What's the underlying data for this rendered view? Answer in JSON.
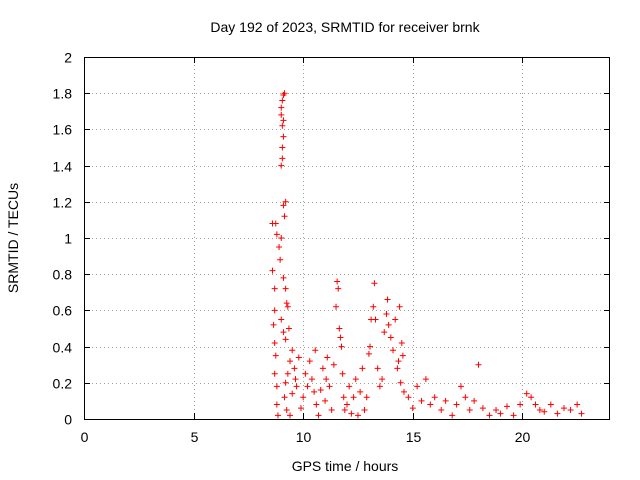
{
  "chart_data": {
    "type": "scatter",
    "title": "Day 192 of 2023, SRMTID for receiver brnk",
    "xlabel": "GPS time / hours",
    "ylabel": "SRMTID / TECUs",
    "xlim": [
      0,
      24
    ],
    "ylim": [
      0,
      2
    ],
    "xticks": [
      0,
      5,
      10,
      15,
      20
    ],
    "xtick_labels": [
      "0",
      "5",
      "10",
      "15",
      "20"
    ],
    "yticks": [
      0,
      0.2,
      0.4,
      0.6,
      0.8,
      1,
      1.2,
      1.4,
      1.6,
      1.8,
      2
    ],
    "ytick_labels": [
      "0",
      "0.2",
      "0.4",
      "0.6",
      "0.8",
      "1",
      "1.2",
      "1.4",
      "1.6",
      "1.8",
      "2"
    ],
    "grid": true,
    "marker": "plus",
    "color": "#ff0000",
    "series": [
      {
        "name": "SRMTID",
        "points": [
          [
            8.6,
            1.08
          ],
          [
            8.75,
            1.08
          ],
          [
            8.8,
            1.02
          ],
          [
            8.6,
            0.82
          ],
          [
            8.7,
            0.72
          ],
          [
            8.7,
            0.6
          ],
          [
            8.65,
            0.52
          ],
          [
            8.7,
            0.42
          ],
          [
            8.75,
            0.35
          ],
          [
            8.7,
            0.25
          ],
          [
            8.8,
            0.18
          ],
          [
            8.8,
            0.08
          ],
          [
            8.85,
            0.02
          ],
          [
            8.9,
            0.95
          ],
          [
            8.95,
            0.88
          ],
          [
            9.0,
            1.0
          ],
          [
            9.05,
            1.44
          ],
          [
            9.0,
            1.4
          ],
          [
            9.05,
            1.5
          ],
          [
            9.1,
            1.56
          ],
          [
            9.05,
            1.62
          ],
          [
            9.1,
            1.65
          ],
          [
            9.0,
            1.72
          ],
          [
            9.05,
            1.76
          ],
          [
            9.1,
            1.79
          ],
          [
            9.15,
            1.8
          ],
          [
            9.0,
            1.68
          ],
          [
            9.1,
            1.18
          ],
          [
            9.15,
            1.12
          ],
          [
            9.2,
            1.2
          ],
          [
            9.1,
            0.78
          ],
          [
            9.2,
            0.72
          ],
          [
            9.25,
            0.64
          ],
          [
            9.3,
            0.62
          ],
          [
            9.0,
            0.55
          ],
          [
            9.1,
            0.48
          ],
          [
            9.2,
            0.44
          ],
          [
            9.35,
            0.5
          ],
          [
            9.4,
            0.32
          ],
          [
            9.3,
            0.25
          ],
          [
            9.2,
            0.2
          ],
          [
            9.15,
            0.12
          ],
          [
            9.25,
            0.05
          ],
          [
            9.4,
            0.02
          ],
          [
            9.5,
            0.14
          ],
          [
            9.5,
            0.38
          ],
          [
            9.6,
            0.28
          ],
          [
            9.65,
            0.22
          ],
          [
            9.7,
            0.18
          ],
          [
            9.8,
            0.34
          ],
          [
            9.9,
            0.06
          ],
          [
            10.0,
            0.12
          ],
          [
            10.1,
            0.25
          ],
          [
            10.2,
            0.18
          ],
          [
            10.3,
            0.32
          ],
          [
            10.4,
            0.22
          ],
          [
            10.5,
            0.15
          ],
          [
            10.55,
            0.38
          ],
          [
            10.6,
            0.08
          ],
          [
            10.7,
            0.02
          ],
          [
            10.8,
            0.16
          ],
          [
            10.9,
            0.28
          ],
          [
            11.0,
            0.1
          ],
          [
            11.05,
            0.22
          ],
          [
            11.1,
            0.34
          ],
          [
            11.2,
            0.18
          ],
          [
            11.3,
            0.05
          ],
          [
            11.4,
            0.3
          ],
          [
            11.5,
            0.62
          ],
          [
            11.55,
            0.76
          ],
          [
            11.6,
            0.72
          ],
          [
            11.65,
            0.5
          ],
          [
            11.7,
            0.45
          ],
          [
            11.75,
            0.4
          ],
          [
            11.8,
            0.25
          ],
          [
            11.85,
            0.12
          ],
          [
            11.9,
            0.05
          ],
          [
            12.0,
            0.08
          ],
          [
            12.1,
            0.18
          ],
          [
            12.2,
            0.03
          ],
          [
            12.3,
            0.12
          ],
          [
            12.4,
            0.22
          ],
          [
            12.5,
            0.02
          ],
          [
            12.6,
            0.15
          ],
          [
            12.7,
            0.28
          ],
          [
            12.8,
            0.05
          ],
          [
            12.9,
            0.12
          ],
          [
            13.0,
            0.36
          ],
          [
            13.05,
            0.4
          ],
          [
            13.1,
            0.55
          ],
          [
            13.2,
            0.62
          ],
          [
            13.25,
            0.75
          ],
          [
            13.3,
            0.55
          ],
          [
            13.4,
            0.28
          ],
          [
            13.5,
            0.18
          ],
          [
            13.6,
            0.22
          ],
          [
            13.7,
            0.48
          ],
          [
            13.8,
            0.58
          ],
          [
            13.85,
            0.66
          ],
          [
            13.9,
            0.52
          ],
          [
            14.0,
            0.45
          ],
          [
            14.1,
            0.38
          ],
          [
            14.2,
            0.55
          ],
          [
            14.3,
            0.28
          ],
          [
            14.35,
            0.32
          ],
          [
            14.4,
            0.62
          ],
          [
            14.45,
            0.2
          ],
          [
            14.5,
            0.42
          ],
          [
            14.55,
            0.35
          ],
          [
            14.6,
            0.15
          ],
          [
            14.8,
            0.12
          ],
          [
            15.0,
            0.06
          ],
          [
            15.2,
            0.18
          ],
          [
            15.4,
            0.1
          ],
          [
            15.6,
            0.22
          ],
          [
            15.8,
            0.08
          ],
          [
            16.0,
            0.12
          ],
          [
            16.3,
            0.05
          ],
          [
            16.5,
            0.1
          ],
          [
            16.8,
            0.02
          ],
          [
            17.0,
            0.08
          ],
          [
            17.2,
            0.18
          ],
          [
            17.4,
            0.12
          ],
          [
            17.6,
            0.05
          ],
          [
            17.8,
            0.1
          ],
          [
            18.0,
            0.3
          ],
          [
            18.2,
            0.06
          ],
          [
            18.5,
            0.02
          ],
          [
            18.8,
            0.05
          ],
          [
            19.0,
            0.03
          ],
          [
            19.3,
            0.07
          ],
          [
            19.6,
            0.02
          ],
          [
            19.9,
            0.08
          ],
          [
            20.2,
            0.14
          ],
          [
            20.4,
            0.12
          ],
          [
            20.6,
            0.08
          ],
          [
            20.8,
            0.05
          ],
          [
            21.0,
            0.04
          ],
          [
            21.3,
            0.08
          ],
          [
            21.6,
            0.03
          ],
          [
            21.9,
            0.06
          ],
          [
            22.2,
            0.05
          ],
          [
            22.5,
            0.08
          ],
          [
            22.7,
            0.03
          ]
        ]
      }
    ]
  }
}
